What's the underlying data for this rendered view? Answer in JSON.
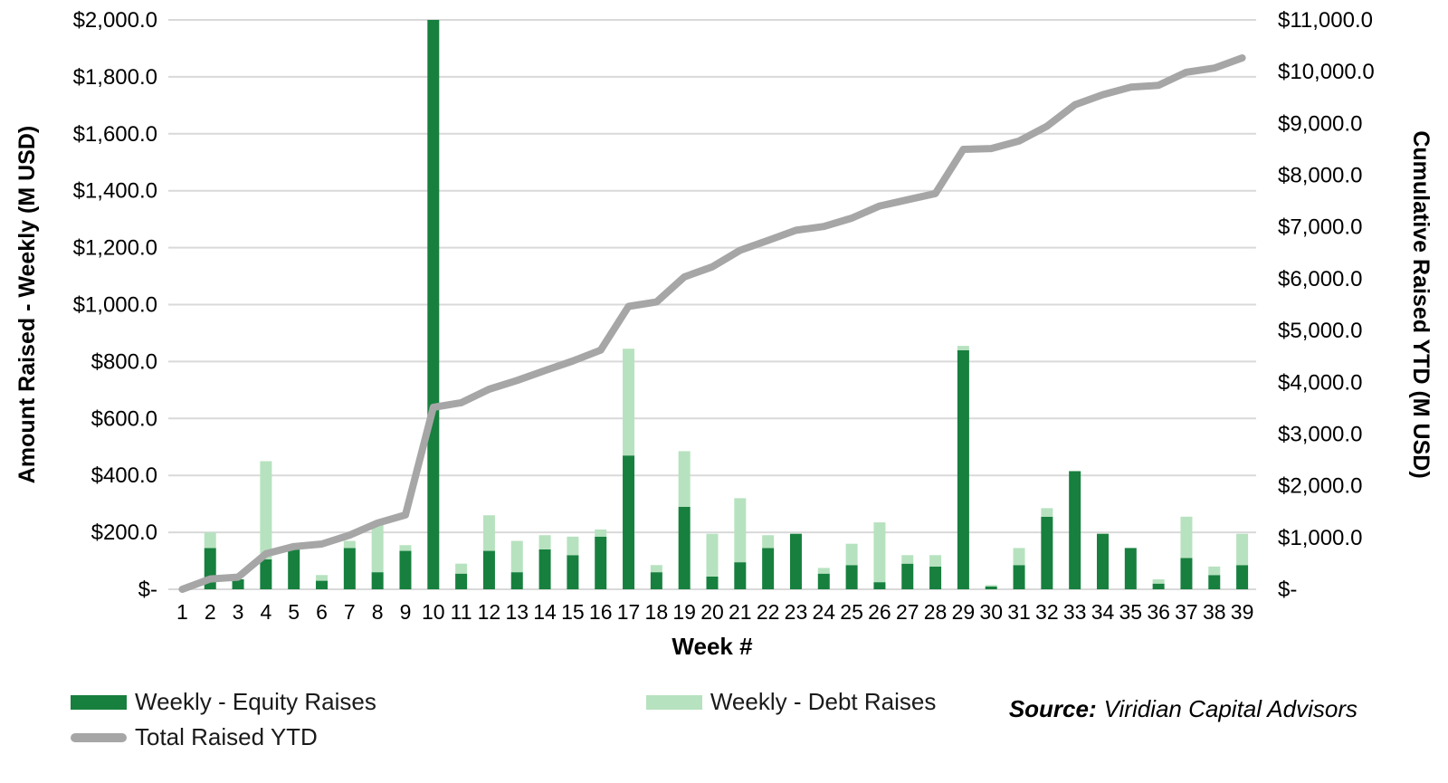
{
  "chart_data": {
    "type": "bar",
    "subtype": "stacked-bars-with-line",
    "title": "",
    "xlabel": "Week #",
    "categories": [
      1,
      2,
      3,
      4,
      5,
      6,
      7,
      8,
      9,
      10,
      11,
      12,
      13,
      14,
      15,
      16,
      17,
      18,
      19,
      20,
      21,
      22,
      23,
      24,
      25,
      26,
      27,
      28,
      29,
      30,
      31,
      32,
      33,
      34,
      35,
      36,
      37,
      38,
      39
    ],
    "left_axis": {
      "label": "Amount Raised - Weekly (M USD)",
      "ylim": [
        0,
        2000
      ],
      "tick_step": 200,
      "tick_labels": [
        "$-",
        "$200.0",
        "$400.0",
        "$600.0",
        "$800.0",
        "$1,000.0",
        "$1,200.0",
        "$1,400.0",
        "$1,600.0",
        "$1,800.0",
        "$2,000.0"
      ]
    },
    "right_axis": {
      "label": "Cumulative Raised YTD (M USD)",
      "ylim": [
        0,
        11000
      ],
      "tick_step": 1000,
      "tick_labels": [
        "$-",
        "$1,000.0",
        "$2,000.0",
        "$3,000.0",
        "$4,000.0",
        "$5,000.0",
        "$6,000.0",
        "$7,000.0",
        "$8,000.0",
        "$9,000.0",
        "$10,000.0",
        "$11,000.0"
      ]
    },
    "grid": true,
    "legend_position": "bottom-left",
    "series": [
      {
        "name": "Weekly - Equity Raises",
        "type": "bar",
        "stack": "weekly",
        "axis": "left",
        "color": "#17803e",
        "values": [
          0,
          145,
          35,
          105,
          140,
          30,
          145,
          60,
          135,
          2080,
          55,
          135,
          60,
          140,
          120,
          185,
          470,
          60,
          290,
          45,
          95,
          145,
          195,
          55,
          85,
          25,
          90,
          80,
          840,
          10,
          85,
          255,
          415,
          195,
          145,
          20,
          110,
          50,
          85
        ]
      },
      {
        "name": "Weekly - Debt Raises",
        "type": "bar",
        "stack": "weekly",
        "axis": "left",
        "color": "#b7e2bf",
        "values": [
          0,
          55,
          0,
          345,
          0,
          20,
          25,
          175,
          20,
          0,
          35,
          125,
          110,
          50,
          65,
          25,
          375,
          25,
          195,
          150,
          225,
          45,
          0,
          20,
          75,
          210,
          30,
          40,
          15,
          5,
          60,
          30,
          0,
          0,
          0,
          15,
          145,
          30,
          110
        ]
      },
      {
        "name": "Total Raised YTD",
        "type": "line",
        "axis": "right",
        "color": "#a6a6a6",
        "values": [
          0,
          200,
          235,
          685,
          825,
          875,
          1045,
          1280,
          1435,
          3515,
          3605,
          3865,
          4035,
          4225,
          4410,
          4620,
          5465,
          5550,
          6035,
          6230,
          6550,
          6740,
          6935,
          7010,
          7170,
          7405,
          7525,
          7645,
          8500,
          8515,
          8660,
          8945,
          9360,
          9555,
          9700,
          9735,
          9990,
          10070,
          10265
        ]
      }
    ],
    "gridline_color": "#d9d9d9",
    "clip_bars_at_axis_max": true
  },
  "legend": {
    "equity": "Weekly - Equity Raises",
    "debt": "Weekly - Debt Raises",
    "total": "Total Raised YTD"
  },
  "source": {
    "label": "Source:",
    "value": "Viridian Capital Advisors"
  }
}
